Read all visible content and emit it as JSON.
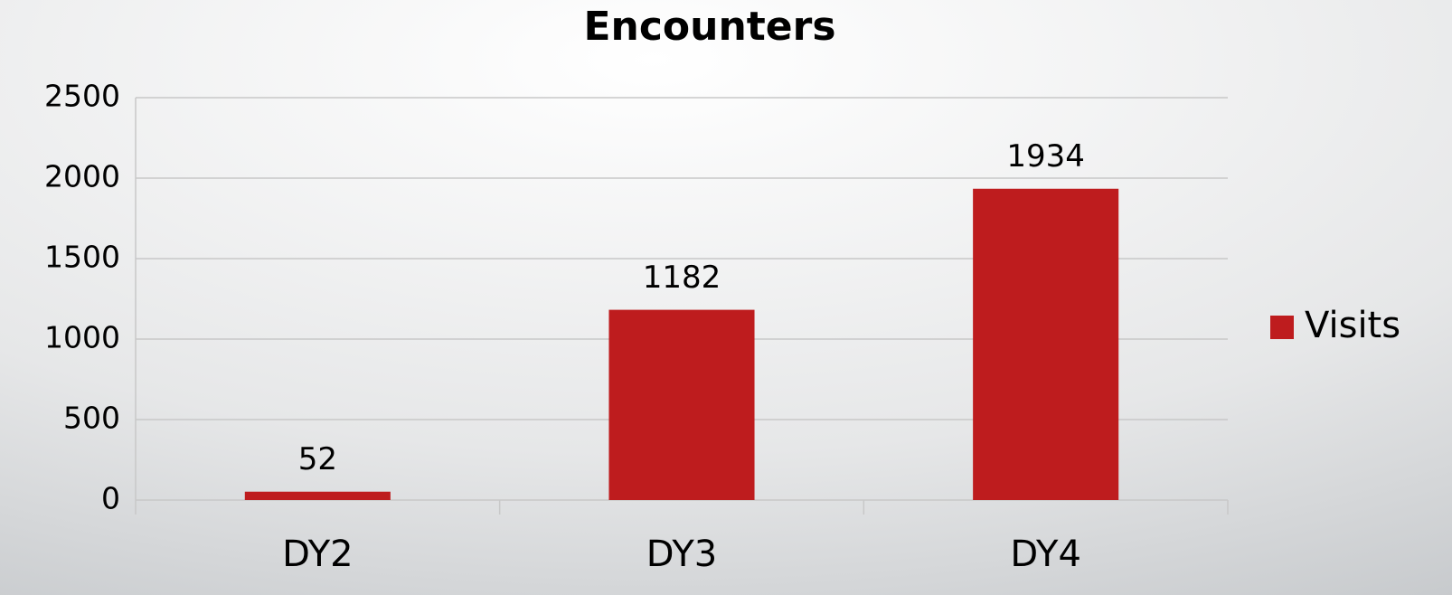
{
  "chart_data": {
    "type": "bar",
    "title": "Encounters",
    "categories": [
      "DY2",
      "DY3",
      "DY4"
    ],
    "series": [
      {
        "name": "Visits",
        "color": "#be1c1e",
        "values": [
          52,
          1182,
          1934
        ]
      }
    ],
    "ylim": [
      0,
      2500
    ],
    "yticks": [
      0,
      500,
      1000,
      1500,
      2000,
      2500
    ],
    "grid": true,
    "legend": "right"
  }
}
